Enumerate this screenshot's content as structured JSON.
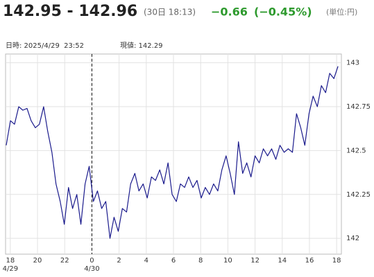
{
  "chart_data": {
    "type": "line",
    "header": {
      "price": "142.95 - 142.96",
      "time": "(30日 18:13)",
      "change": "−0.66",
      "change_pct": "(−0.45%)",
      "unit": "(単位:円)"
    },
    "cursor_info": {
      "datetime": "日時: 2025/4/29  23:52",
      "current": "現値: 142.29"
    },
    "x": [
      17.7,
      18.01,
      18.31,
      18.62,
      18.92,
      19.23,
      19.53,
      19.84,
      20.14,
      20.45,
      20.75,
      21.06,
      21.36,
      21.67,
      21.97,
      22.28,
      22.58,
      22.89,
      23.19,
      23.5,
      23.8,
      24.11,
      24.41,
      24.72,
      25.02,
      25.33,
      25.63,
      25.94,
      26.24,
      26.55,
      26.85,
      27.16,
      27.46,
      27.77,
      28.07,
      28.38,
      28.68,
      28.99,
      29.29,
      29.6,
      29.9,
      30.21,
      30.51,
      30.82,
      31.12,
      31.43,
      31.73,
      32.04,
      32.34,
      32.65,
      32.95,
      33.26,
      33.56,
      33.87,
      34.17,
      34.48,
      34.78,
      35.09,
      35.39,
      35.7,
      36.0,
      36.31,
      36.61,
      36.92,
      37.22,
      37.53,
      37.83,
      38.14,
      38.44,
      38.75,
      39.05,
      39.36,
      39.66,
      39.97,
      40.27,
      40.58,
      40.88,
      41.19,
      41.49,
      41.8,
      42.1
    ],
    "values": [
      142.53,
      142.67,
      142.65,
      142.75,
      142.73,
      142.74,
      142.67,
      142.63,
      142.65,
      142.75,
      142.61,
      142.49,
      142.31,
      142.21,
      142.08,
      142.29,
      142.17,
      142.25,
      142.08,
      142.31,
      142.41,
      142.21,
      142.27,
      142.17,
      142.21,
      142.0,
      142.12,
      142.04,
      142.17,
      142.15,
      142.31,
      142.37,
      142.27,
      142.31,
      142.23,
      142.35,
      142.33,
      142.39,
      142.31,
      142.43,
      142.25,
      142.21,
      142.31,
      142.29,
      142.35,
      142.29,
      142.33,
      142.23,
      142.29,
      142.25,
      142.31,
      142.27,
      142.39,
      142.47,
      142.37,
      142.25,
      142.55,
      142.37,
      142.43,
      142.35,
      142.47,
      142.43,
      142.51,
      142.47,
      142.51,
      142.45,
      142.53,
      142.49,
      142.51,
      142.49,
      142.71,
      142.63,
      142.53,
      142.71,
      142.81,
      142.75,
      142.87,
      142.83,
      142.94,
      142.91,
      142.98
    ],
    "color": "#1a1a8c",
    "xlim": [
      17.65,
      42.35
    ],
    "xticks": [
      18,
      20,
      22,
      {
        "value": 24,
        "label": "0"
      },
      {
        "value": 26,
        "label": "2"
      },
      {
        "value": 28,
        "label": "4"
      },
      {
        "value": 30,
        "label": "6"
      },
      {
        "value": 32,
        "label": "8"
      },
      {
        "value": 34,
        "label": "10"
      },
      {
        "value": 36,
        "label": "12"
      },
      {
        "value": 38,
        "label": "14"
      },
      {
        "value": 40,
        "label": "16"
      },
      {
        "value": 42,
        "label": "18"
      }
    ],
    "date_labels": [
      {
        "value": 18,
        "label": "4/29"
      },
      {
        "value": 24,
        "label": "4/30"
      }
    ],
    "day_divider": 24,
    "ylim": [
      141.91,
      143.05
    ],
    "yticks": [
      142,
      142.25,
      142.5,
      142.75,
      143
    ],
    "grid": true
  }
}
